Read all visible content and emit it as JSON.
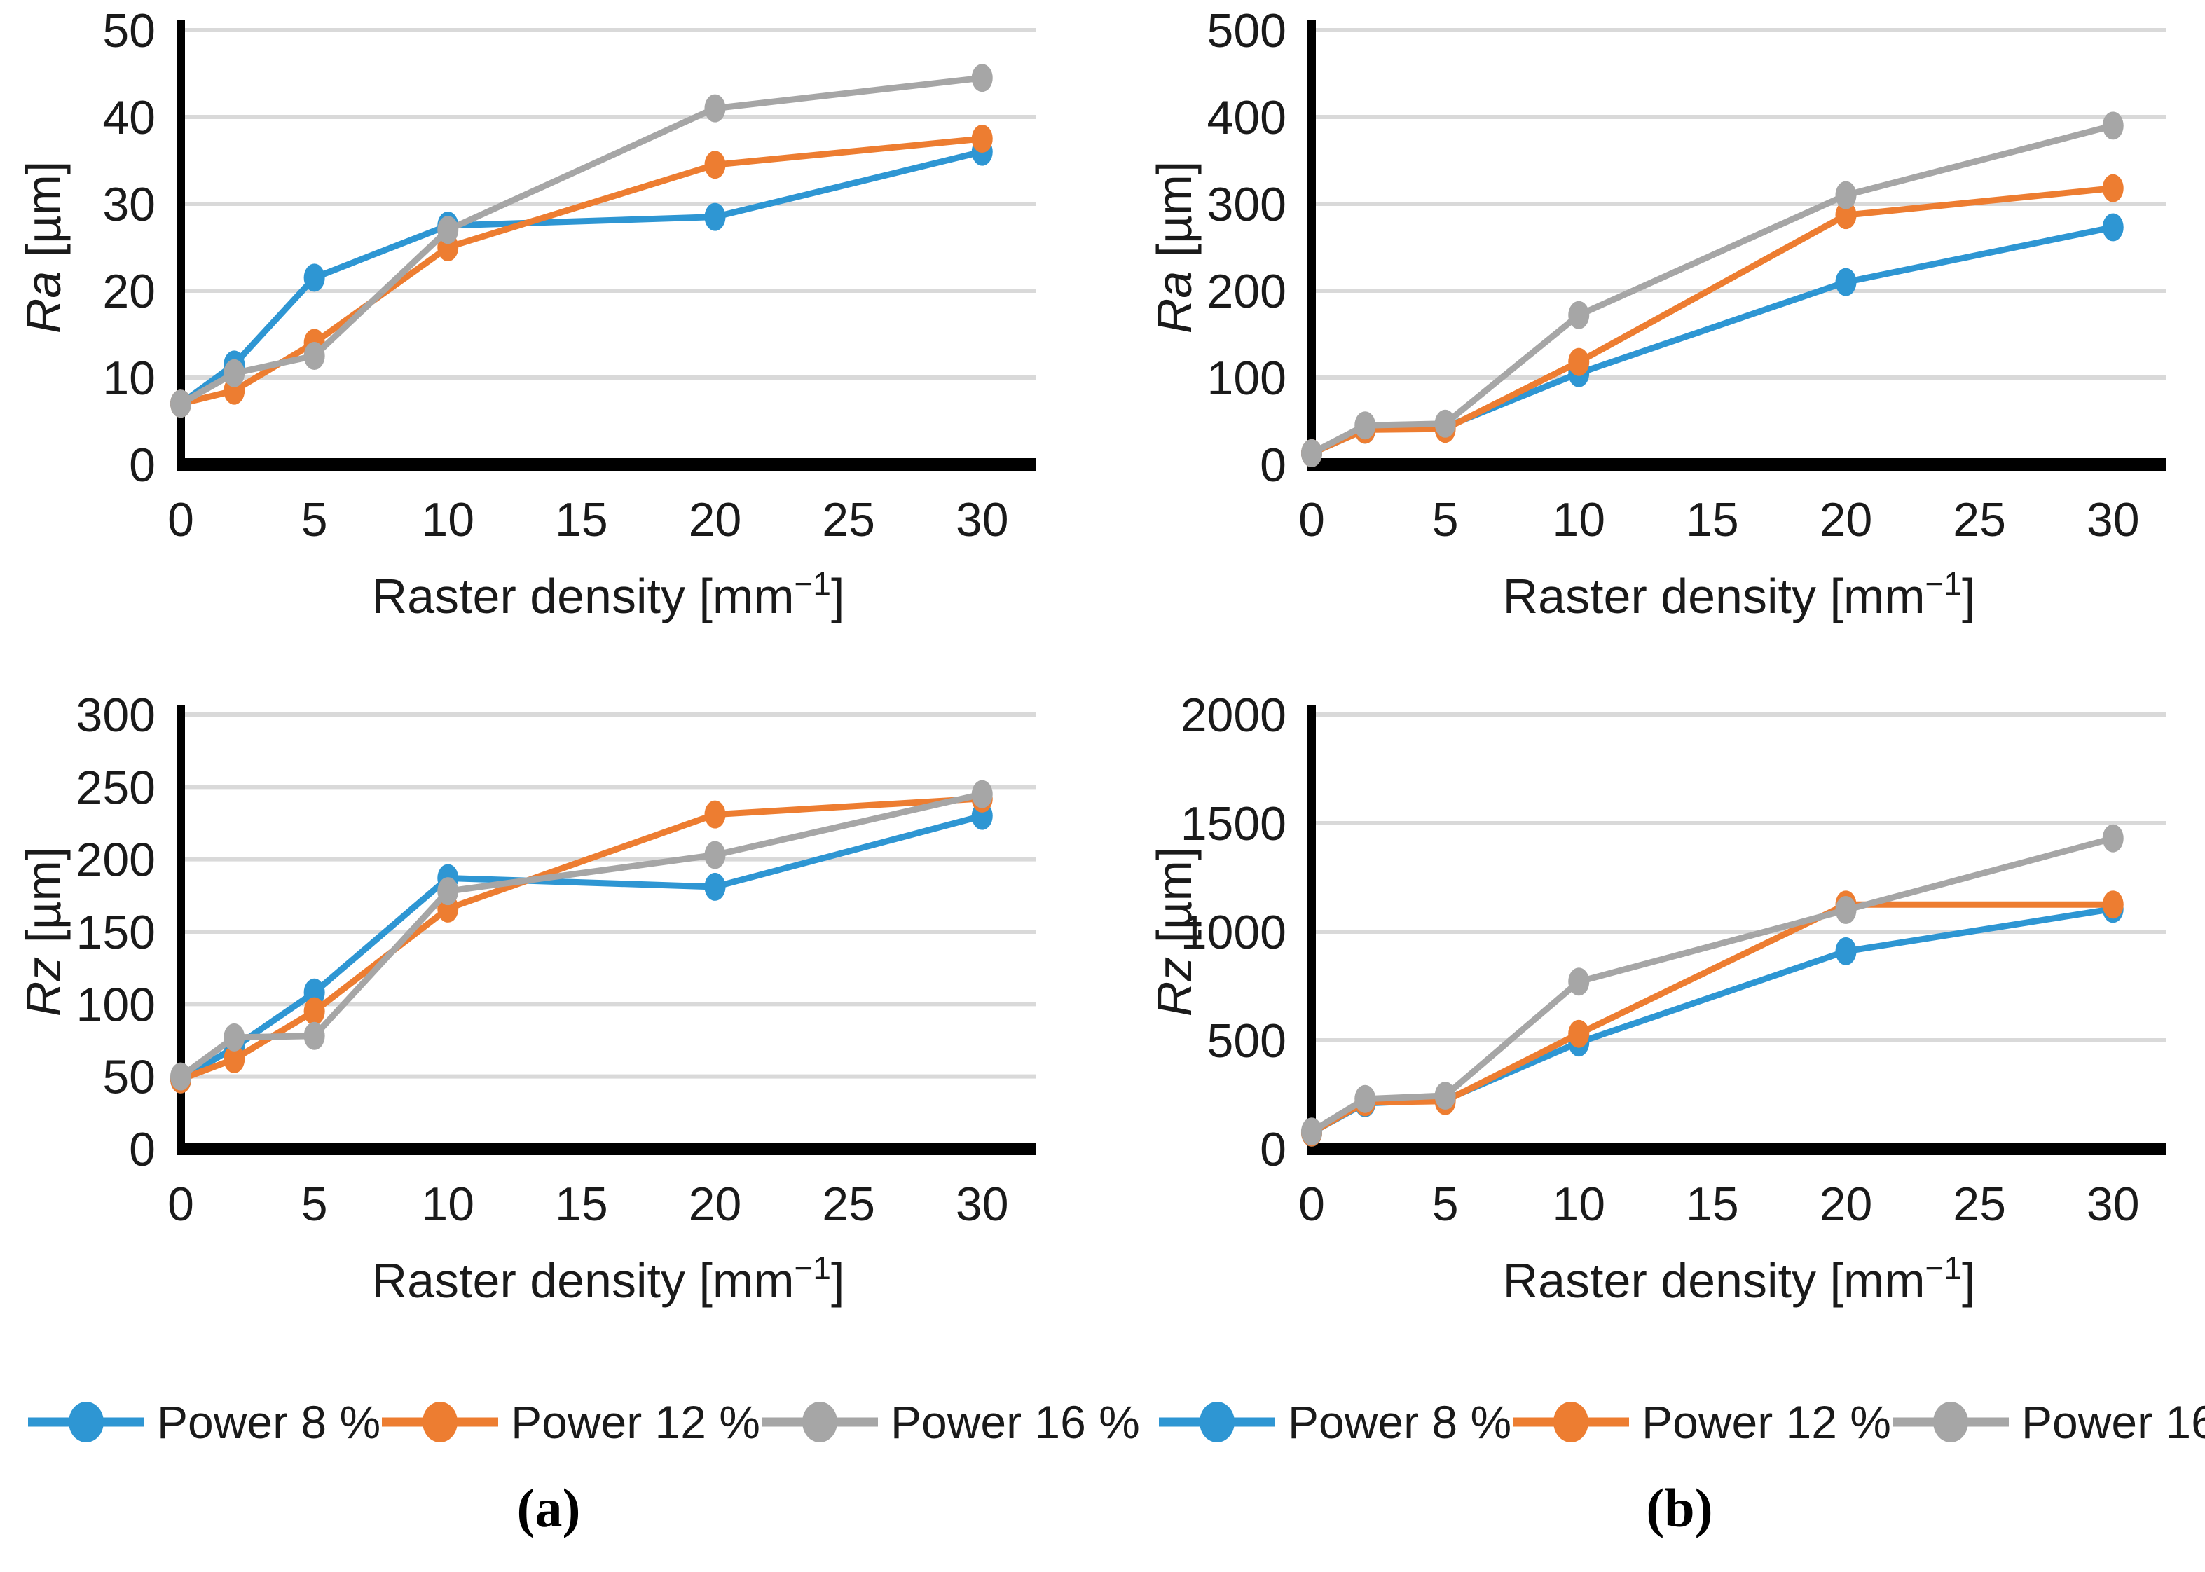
{
  "figure": {
    "background": "#ffffff",
    "colors": {
      "blue": "#2E96D3",
      "orange": "#ED7D31",
      "gray": "#A6A6A6",
      "gridline": "#D9D9D9",
      "axis": "#000000",
      "text": "#1a1a1a"
    },
    "legend": {
      "items": [
        {
          "name": "Power 8 %",
          "color": "blue"
        },
        {
          "name": "Power 12 %",
          "color": "orange"
        },
        {
          "name": "Power 16 %",
          "color": "gray"
        }
      ]
    },
    "captions": {
      "a": "(a)",
      "b": "(b)"
    }
  },
  "chart_data": [
    {
      "id": "ra-a",
      "type": "line",
      "position": "top-left",
      "ylabel_italic": "Ra",
      "ylabel_rest": " [µm]",
      "xlabel_pre": "Raster density [mm",
      "xlabel_sup": "−1",
      "xlabel_post": "]",
      "x": [
        0,
        2,
        5,
        10,
        20,
        30
      ],
      "xticks": [
        0,
        5,
        10,
        15,
        20,
        25,
        30
      ],
      "xlim": [
        0,
        32
      ],
      "ylim": [
        0,
        50
      ],
      "yticks": [
        0,
        10,
        20,
        30,
        40,
        50
      ],
      "grid": true,
      "legend_position": "bottom",
      "series": [
        {
          "name": "Power 8 %",
          "color": "blue",
          "values": [
            7,
            11.5,
            21.5,
            27.5,
            28.5,
            36
          ]
        },
        {
          "name": "Power 12 %",
          "color": "orange",
          "values": [
            7,
            8.5,
            14,
            25,
            34.5,
            37.5
          ]
        },
        {
          "name": "Power 16 %",
          "color": "gray",
          "values": [
            7,
            10.5,
            12.5,
            27,
            41,
            44.5
          ]
        }
      ]
    },
    {
      "id": "ra-b",
      "type": "line",
      "position": "top-right",
      "ylabel_italic": "Ra",
      "ylabel_rest": " [µm]",
      "xlabel_pre": "Raster density [mm",
      "xlabel_sup": "−1",
      "xlabel_post": "]",
      "x": [
        0,
        2,
        5,
        10,
        20,
        30
      ],
      "xticks": [
        0,
        5,
        10,
        15,
        20,
        25,
        30
      ],
      "xlim": [
        0,
        32
      ],
      "ylim": [
        0,
        500
      ],
      "yticks": [
        0,
        100,
        200,
        300,
        400,
        500
      ],
      "grid": true,
      "legend_position": "bottom",
      "series": [
        {
          "name": "Power 8 %",
          "color": "blue",
          "values": [
            13,
            40,
            43,
            105,
            210,
            273
          ]
        },
        {
          "name": "Power 12 %",
          "color": "orange",
          "values": [
            13,
            40,
            41,
            118,
            287,
            318
          ]
        },
        {
          "name": "Power 16 %",
          "color": "gray",
          "values": [
            13,
            45,
            47,
            172,
            310,
            390
          ]
        }
      ]
    },
    {
      "id": "rz-a",
      "type": "line",
      "position": "bottom-left",
      "ylabel_italic": "Rz",
      "ylabel_rest": " [µm]",
      "xlabel_pre": "Raster density [mm",
      "xlabel_sup": "−1",
      "xlabel_post": "]",
      "x": [
        0,
        2,
        5,
        10,
        20,
        30
      ],
      "xticks": [
        0,
        5,
        10,
        15,
        20,
        25,
        30
      ],
      "xlim": [
        0,
        32
      ],
      "ylim": [
        0,
        300
      ],
      "yticks": [
        0,
        50,
        100,
        150,
        200,
        250,
        300
      ],
      "grid": true,
      "legend_position": "bottom",
      "series": [
        {
          "name": "Power 8 %",
          "color": "blue",
          "values": [
            48,
            70,
            108,
            187,
            181,
            230
          ]
        },
        {
          "name": "Power 12 %",
          "color": "orange",
          "values": [
            48,
            62,
            95,
            166,
            231,
            242
          ]
        },
        {
          "name": "Power 16 %",
          "color": "gray",
          "values": [
            50,
            77,
            78,
            178,
            203,
            245
          ]
        }
      ]
    },
    {
      "id": "rz-b",
      "type": "line",
      "position": "bottom-right",
      "ylabel_italic": "Rz",
      "ylabel_rest": " [µm]",
      "xlabel_pre": "Raster density [mm",
      "xlabel_sup": "−1",
      "xlabel_post": "]",
      "x": [
        0,
        2,
        5,
        10,
        20,
        30
      ],
      "xticks": [
        0,
        5,
        10,
        15,
        20,
        25,
        30
      ],
      "xlim": [
        0,
        32
      ],
      "ylim": [
        0,
        2000
      ],
      "yticks": [
        0,
        500,
        1000,
        1500,
        2000
      ],
      "grid": true,
      "legend_position": "bottom",
      "series": [
        {
          "name": "Power 8 %",
          "color": "blue",
          "values": [
            75,
            210,
            225,
            490,
            910,
            1105
          ]
        },
        {
          "name": "Power 12 %",
          "color": "orange",
          "values": [
            75,
            215,
            220,
            530,
            1125,
            1125
          ]
        },
        {
          "name": "Power 16 %",
          "color": "gray",
          "values": [
            80,
            230,
            245,
            770,
            1100,
            1430
          ]
        }
      ]
    }
  ]
}
